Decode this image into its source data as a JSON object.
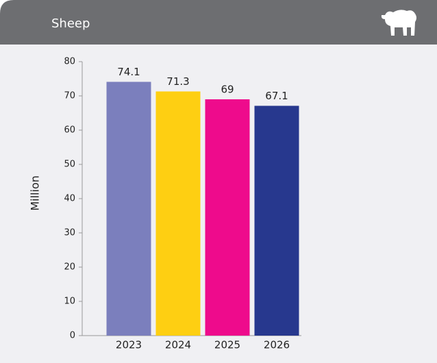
{
  "chart_data": {
    "type": "bar",
    "title": "Sheep",
    "y_label": "Million",
    "categories": [
      "2023",
      "2024",
      "2025",
      "2026"
    ],
    "values": [
      74.1,
      71.3,
      69,
      67.1
    ],
    "colors": [
      "#7b7fbd",
      "#fecf12",
      "#ee0b8c",
      "#27388e"
    ],
    "ylim": [
      0,
      80
    ],
    "yticks": [
      0,
      10,
      20,
      30,
      40,
      50,
      60,
      70,
      80
    ]
  }
}
